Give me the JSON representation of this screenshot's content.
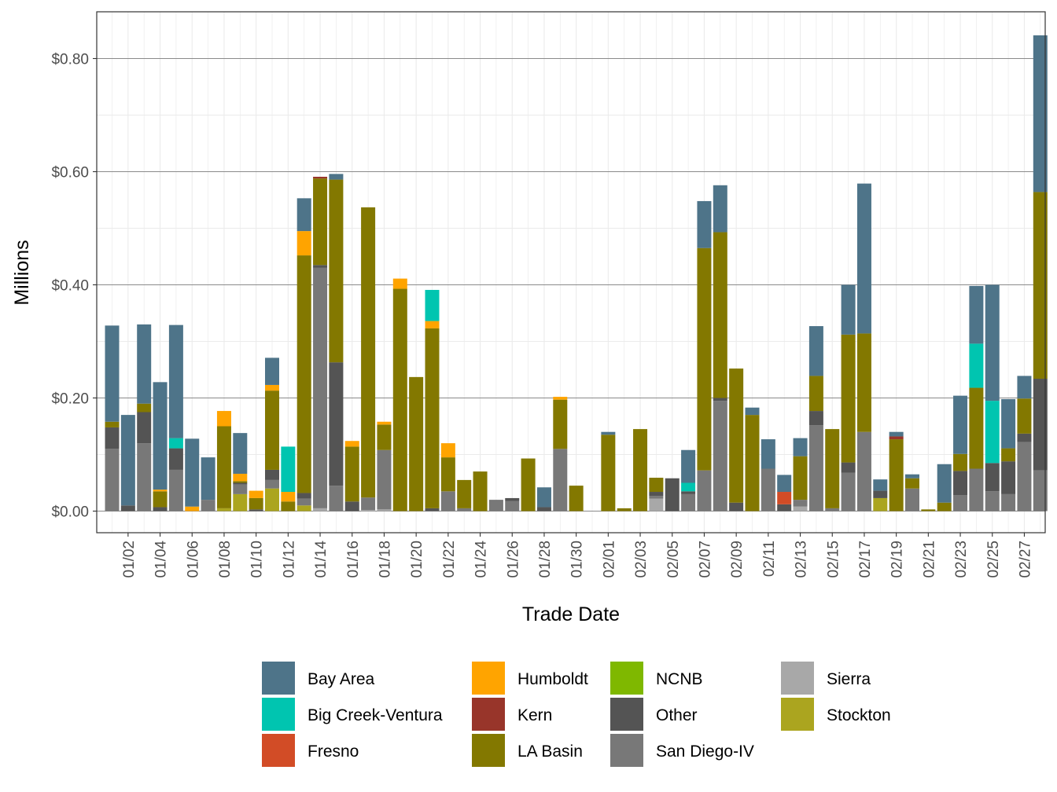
{
  "chart_data": {
    "type": "bar",
    "stacked": true,
    "xlabel": "Trade Date",
    "ylabel": "Millions",
    "ylim": [
      -0.04,
      0.88
    ],
    "y_ticks": [
      0.0,
      0.2,
      0.4,
      0.6,
      0.8
    ],
    "y_tick_labels": [
      "$0.00",
      "$0.20",
      "$0.40",
      "$0.60",
      "$0.80"
    ],
    "x_tick_labels": [
      "01/02",
      "01/04",
      "01/06",
      "01/08",
      "01/10",
      "01/12",
      "01/14",
      "01/16",
      "01/18",
      "01/20",
      "01/22",
      "01/24",
      "01/26",
      "01/28",
      "01/30",
      "02/01",
      "02/03",
      "02/05",
      "02/07",
      "02/09",
      "02/11",
      "02/13",
      "02/15",
      "02/17",
      "02/19",
      "02/21",
      "02/23",
      "02/25",
      "02/27"
    ],
    "categories": [
      "01/01",
      "01/02",
      "01/03",
      "01/04",
      "01/05",
      "01/06",
      "01/07",
      "01/08",
      "01/09",
      "01/10",
      "01/11",
      "01/12",
      "01/13",
      "01/14",
      "01/15",
      "01/16",
      "01/17",
      "01/18",
      "01/19",
      "01/20",
      "01/21",
      "01/22",
      "01/23",
      "01/24",
      "01/25",
      "01/26",
      "01/27",
      "01/28",
      "01/29",
      "01/30",
      "01/31",
      "02/01",
      "02/02",
      "02/03",
      "02/04",
      "02/05",
      "02/06",
      "02/07",
      "02/08",
      "02/09",
      "02/10",
      "02/11",
      "02/12",
      "02/13",
      "02/14",
      "02/15",
      "02/16",
      "02/17",
      "02/18",
      "02/19",
      "02/20",
      "02/21",
      "02/22",
      "02/23",
      "02/24",
      "02/25",
      "02/26",
      "02/27",
      "02/28"
    ],
    "stack_order": [
      "Stockton",
      "Sierra",
      "San Diego-IV",
      "Other",
      "NCNB",
      "LA Basin",
      "Kern",
      "Humboldt",
      "Fresno",
      "Big Creek-Ventura",
      "Bay Area"
    ],
    "series": [
      {
        "name": "Bay Area",
        "color": "#4E7489",
        "values": [
          0.17,
          0.16,
          0.14,
          0.19,
          0.2,
          0.12,
          0.075,
          0,
          0.072,
          0,
          0.048,
          0,
          0.058,
          0,
          0.01,
          0,
          0,
          0,
          0,
          0,
          0,
          0,
          0,
          0,
          0,
          0,
          0,
          0.035,
          0,
          0,
          0,
          0.005,
          0,
          0,
          0,
          0,
          0.058,
          0.083,
          0.083,
          0,
          0.013,
          0.052,
          0.03,
          0.032,
          0.088,
          0,
          0.088,
          0.265,
          0.02,
          0.008,
          0.007,
          0,
          0.068,
          0.103,
          0.102,
          0.205,
          0.087,
          0.04,
          0.277
        ]
      },
      {
        "name": "Big Creek-Ventura",
        "color": "#00C5B0",
        "values": [
          0,
          0,
          0,
          0,
          0.018,
          0,
          0,
          0,
          0,
          0,
          0,
          0.08,
          0,
          0,
          0,
          0,
          0,
          0,
          0,
          0,
          0.055,
          0,
          0,
          0,
          0,
          0,
          0,
          0,
          0,
          0,
          0,
          0,
          0,
          0,
          0,
          0,
          0.015,
          0,
          0,
          0,
          0,
          0,
          0,
          0,
          0,
          0,
          0,
          0,
          0,
          0,
          0,
          0,
          0,
          0,
          0.078,
          0.11,
          0,
          0,
          0
        ]
      },
      {
        "name": "Fresno",
        "color": "#D24C26",
        "values": [
          0,
          0,
          0,
          0,
          0,
          0,
          0,
          0,
          0,
          0,
          0,
          0,
          0,
          0,
          0,
          0,
          0,
          0,
          0,
          0,
          0,
          0,
          0,
          0,
          0,
          0,
          0,
          0,
          0,
          0,
          0,
          0,
          0,
          0,
          0,
          0,
          0,
          0,
          0,
          0,
          0,
          0,
          0.022,
          0,
          0,
          0,
          0,
          0,
          0,
          0,
          0,
          0,
          0,
          0,
          0,
          0,
          0,
          0,
          0
        ]
      },
      {
        "name": "Humboldt",
        "color": "#FFA400",
        "values": [
          0,
          0,
          0,
          0.003,
          0,
          0.008,
          0,
          0.027,
          0.013,
          0.013,
          0.01,
          0.017,
          0.043,
          0,
          0,
          0.01,
          0,
          0.005,
          0.018,
          0,
          0.013,
          0.025,
          0,
          0,
          0,
          0,
          0,
          0,
          0.005,
          0,
          0,
          0,
          0,
          0,
          0,
          0,
          0,
          0,
          0,
          0,
          0,
          0,
          0,
          0,
          0,
          0,
          0,
          0,
          0,
          0,
          0,
          0,
          0,
          0,
          0,
          0,
          0,
          0,
          0
        ]
      },
      {
        "name": "Kern",
        "color": "#98352A",
        "values": [
          0,
          0,
          0,
          0,
          0,
          0,
          0,
          0,
          0,
          0,
          0,
          0,
          0,
          0.003,
          0,
          0,
          0,
          0,
          0,
          0,
          0,
          0,
          0,
          0,
          0,
          0,
          0,
          0,
          0,
          0,
          0,
          0,
          0,
          0,
          0,
          0,
          0,
          0,
          0,
          0,
          0,
          0,
          0,
          0,
          0,
          0,
          0,
          0,
          0,
          0.005,
          0,
          0,
          0,
          0,
          0,
          0,
          0,
          0,
          0
        ]
      },
      {
        "name": "LA Basin",
        "color": "#837800",
        "values": [
          0.01,
          0,
          0.015,
          0.028,
          0,
          0,
          0,
          0.145,
          0.003,
          0.02,
          0.14,
          0.017,
          0.42,
          0.153,
          0.323,
          0.097,
          0.513,
          0.045,
          0.393,
          0.237,
          0.318,
          0.06,
          0.05,
          0.07,
          0,
          0,
          0.093,
          0,
          0.087,
          0.045,
          0,
          0.135,
          0.005,
          0.145,
          0.025,
          0,
          0,
          0.393,
          0.293,
          0.237,
          0.17,
          0,
          0,
          0.077,
          0.062,
          0.14,
          0.226,
          0.174,
          0,
          0.127,
          0.018,
          0.003,
          0.015,
          0.03,
          0.143,
          0,
          0.023,
          0.062,
          0.33
        ]
      },
      {
        "name": "NCNB",
        "color": "#7FB800",
        "values": [
          0,
          0,
          0,
          0,
          0,
          0,
          0,
          0,
          0,
          0,
          0,
          0,
          0,
          0,
          0,
          0,
          0,
          0,
          0,
          0,
          0,
          0,
          0,
          0,
          0,
          0,
          0,
          0,
          0,
          0,
          0,
          0,
          0,
          0,
          0,
          0,
          0,
          0,
          0,
          0,
          0,
          0,
          0,
          0,
          0,
          0,
          0,
          0,
          0,
          0,
          0,
          0,
          0,
          0,
          0,
          0,
          0,
          0,
          0
        ]
      },
      {
        "name": "Other",
        "color": "#545454",
        "values": [
          0.038,
          0.01,
          0.055,
          0.007,
          0.038,
          0,
          0,
          0,
          0.003,
          0.003,
          0.018,
          0,
          0.01,
          0.005,
          0.218,
          0.017,
          0,
          0,
          0,
          0,
          0.005,
          0,
          0,
          0,
          0,
          0.005,
          0,
          0.007,
          0,
          0,
          0,
          0,
          0,
          0,
          0.007,
          0.058,
          0.005,
          0,
          0.005,
          0.015,
          0,
          0,
          0.012,
          0,
          0.025,
          0,
          0.018,
          0,
          0.013,
          0,
          0,
          0,
          0,
          0.043,
          0,
          0.05,
          0.058,
          0.015,
          0.162
        ]
      },
      {
        "name": "San Diego-IV",
        "color": "#787878",
        "values": [
          0.11,
          0,
          0.12,
          0,
          0.073,
          0,
          0.02,
          0,
          0.017,
          0,
          0.015,
          0,
          0.012,
          0.425,
          0.045,
          0,
          0.022,
          0.105,
          0,
          0,
          0,
          0.035,
          0.005,
          0,
          0.02,
          0.018,
          0,
          0,
          0.11,
          0,
          0,
          0,
          0,
          0,
          0.005,
          0,
          0.03,
          0.072,
          0.195,
          0,
          0,
          0.075,
          0,
          0.012,
          0.152,
          0.005,
          0.068,
          0.14,
          0,
          0,
          0.04,
          0,
          0,
          0.028,
          0.075,
          0.035,
          0.03,
          0.122,
          0.072
        ]
      },
      {
        "name": "Sierra",
        "color": "#A8A8A8",
        "values": [
          0,
          0,
          0,
          0,
          0,
          0,
          0,
          0,
          0,
          0,
          0,
          0,
          0,
          0.005,
          0,
          0,
          0.002,
          0.003,
          0,
          0,
          0,
          0,
          0,
          0,
          0,
          0,
          0,
          0,
          0,
          0,
          0,
          0,
          0,
          0,
          0.022,
          0,
          0,
          0,
          0,
          0,
          0,
          0,
          0,
          0.008,
          0,
          0,
          0,
          0,
          0,
          0,
          0,
          0,
          0,
          0,
          0,
          0,
          0,
          0,
          0
        ]
      },
      {
        "name": "Stockton",
        "color": "#ABA51F",
        "values": [
          0,
          0,
          0,
          0,
          0,
          0,
          0,
          0.005,
          0.03,
          0,
          0.04,
          0,
          0.01,
          0,
          0,
          0,
          0,
          0,
          0,
          0,
          0,
          0,
          0,
          0,
          0,
          0,
          0,
          0,
          0,
          0,
          0,
          0,
          0,
          0,
          0,
          0,
          0,
          0,
          0,
          0,
          0,
          0,
          0,
          0,
          0,
          0,
          0,
          0,
          0.023,
          0,
          0,
          0,
          0,
          0,
          0,
          0,
          0,
          0,
          0
        ]
      }
    ],
    "legend": {
      "position": "bottom",
      "items": [
        "Bay Area",
        "Big Creek-Ventura",
        "Fresno",
        "Humboldt",
        "Kern",
        "LA Basin",
        "NCNB",
        "Other",
        "San Diego-IV",
        "Sierra",
        "Stockton"
      ]
    },
    "grid": true
  }
}
